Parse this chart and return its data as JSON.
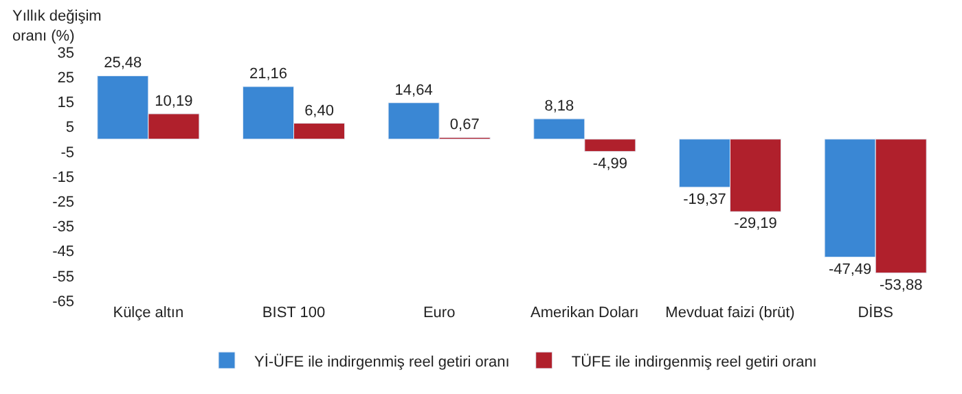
{
  "chart_data": {
    "type": "bar",
    "ylabel": "Yıllık değişim\noranı (%)",
    "categories": [
      "Külçe altın",
      "BIST 100",
      "Euro",
      "Amerikan Doları",
      "Mevduat faizi (brüt)",
      "DİBS"
    ],
    "series": [
      {
        "name": "Yİ-ÜFE ile indirgenmiş reel getiri oranı",
        "color": "#3a87d4",
        "values": [
          25.48,
          21.16,
          14.64,
          8.18,
          -19.37,
          -47.49
        ],
        "value_labels": [
          "25,48",
          "21,16",
          "14,64",
          "8,18",
          "-19,37",
          "-47,49"
        ]
      },
      {
        "name": "TÜFE ile indirgenmiş reel getiri oranı",
        "color": "#b0202c",
        "values": [
          10.19,
          6.4,
          0.67,
          -4.99,
          -29.19,
          -53.88
        ],
        "value_labels": [
          "10,19",
          "6,40",
          "0,67",
          "-4,99",
          "-29,19",
          "-53,88"
        ]
      }
    ],
    "ylim": [
      -65,
      35
    ],
    "yticks": [
      35,
      25,
      15,
      5,
      -5,
      -15,
      -25,
      -35,
      -45,
      -55,
      -65
    ],
    "legend": "bottom"
  }
}
